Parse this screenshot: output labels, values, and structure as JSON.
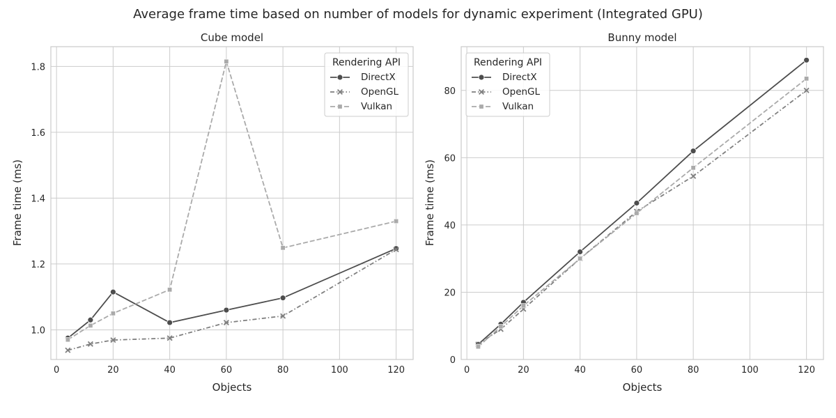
{
  "figure": {
    "title": "Average frame time based on number of models for dynamic experiment (Integrated GPU)"
  },
  "chart_data": [
    {
      "type": "line",
      "title": "Cube model",
      "xlabel": "Objects",
      "ylabel": "Frame time (ms)",
      "xlim": [
        -2,
        126
      ],
      "ylim": [
        0.91,
        1.86
      ],
      "xticks": [
        0,
        20,
        40,
        60,
        80,
        100,
        120
      ],
      "yticks": [
        1.0,
        1.2,
        1.4,
        1.6,
        1.8
      ],
      "ytick_labels": [
        "1.0",
        "1.2",
        "1.4",
        "1.6",
        "1.8"
      ],
      "grid": true,
      "legend": {
        "title": "Rendering API",
        "position": "top-right"
      },
      "x": [
        4,
        12,
        20,
        40,
        60,
        80,
        120
      ],
      "series": [
        {
          "name": "DirectX",
          "color": "#4d4d4d",
          "dash": "solid",
          "marker": "circle",
          "values": [
            0.975,
            1.03,
            1.115,
            1.022,
            1.06,
            1.097,
            1.247
          ]
        },
        {
          "name": "OpenGL",
          "color": "#7f7f7f",
          "dash": "dashdot",
          "marker": "x",
          "values": [
            0.938,
            0.957,
            0.969,
            0.975,
            1.022,
            1.042,
            1.244
          ]
        },
        {
          "name": "Vulkan",
          "color": "#aaaaaa",
          "dash": "dashed",
          "marker": "square",
          "values": [
            0.97,
            1.013,
            1.05,
            1.122,
            1.815,
            1.249,
            1.33
          ]
        }
      ]
    },
    {
      "type": "line",
      "title": "Bunny model",
      "xlabel": "Objects",
      "ylabel": "Frame time (ms)",
      "xlim": [
        -2,
        126
      ],
      "ylim": [
        0,
        93
      ],
      "xticks": [
        0,
        20,
        40,
        60,
        80,
        100,
        120
      ],
      "yticks": [
        0,
        20,
        40,
        60,
        80
      ],
      "ytick_labels": [
        "0",
        "20",
        "40",
        "60",
        "80"
      ],
      "grid": true,
      "legend": {
        "title": "Rendering API",
        "position": "top-left"
      },
      "x": [
        4,
        12,
        20,
        40,
        60,
        80,
        120
      ],
      "series": [
        {
          "name": "DirectX",
          "color": "#4d4d4d",
          "dash": "solid",
          "marker": "circle",
          "values": [
            4.5,
            10.5,
            17,
            32,
            46.5,
            62,
            89
          ]
        },
        {
          "name": "OpenGL",
          "color": "#7f7f7f",
          "dash": "dashdot",
          "marker": "x",
          "values": [
            4.5,
            9,
            15,
            30,
            44,
            54.5,
            80
          ]
        },
        {
          "name": "Vulkan",
          "color": "#aaaaaa",
          "dash": "dashed",
          "marker": "square",
          "values": [
            3.8,
            9.8,
            16,
            30,
            43.5,
            57,
            83.5
          ]
        }
      ]
    }
  ]
}
